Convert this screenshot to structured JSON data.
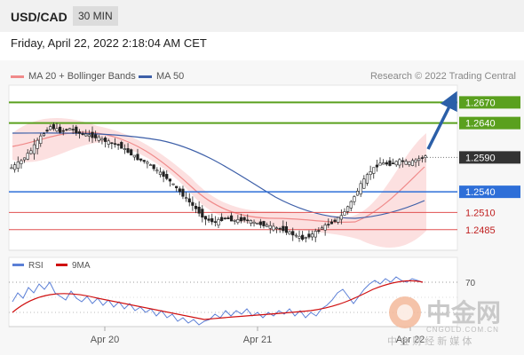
{
  "header": {
    "symbol": "USD/CAD",
    "timeframe": "30 MIN"
  },
  "datetime": "Friday, April 22, 2022 2:18:04 AM CET",
  "legend": [
    {
      "label": "MA 20 + Bollinger Bands",
      "color": "#f08a8a"
    },
    {
      "label": "MA 50",
      "color": "#3d5fa8"
    }
  ],
  "credit": "Research © 2022 Trading Central",
  "rsi_legend": [
    {
      "label": "RSI",
      "color": "#5b7fd6"
    },
    {
      "label": "9MA",
      "color": "#d01010"
    }
  ],
  "colors": {
    "resistance": "#5aa01e",
    "support": "#2e6fd8",
    "minor": "#e05050",
    "last": "#333333",
    "arrow": "#2b5fa8",
    "candle_up": "#ffffff",
    "candle_down": "#222222"
  },
  "chart_data": {
    "type": "candlestick",
    "ylim": [
      1.2455,
      1.2695
    ],
    "x_ticks": [
      "Apr 20",
      "Apr 21",
      "Apr 22"
    ],
    "levels": [
      {
        "value": 1.267,
        "label": "1.2670",
        "kind": "resistance"
      },
      {
        "value": 1.264,
        "label": "1.2640",
        "kind": "resistance"
      },
      {
        "value": 1.259,
        "label": "1.2590",
        "kind": "last"
      },
      {
        "value": 1.254,
        "label": "1.2540",
        "kind": "support"
      },
      {
        "value": 1.251,
        "label": "1.2510",
        "kind": "minor"
      },
      {
        "value": 1.2485,
        "label": "1.2485",
        "kind": "minor"
      }
    ],
    "price_path": [
      [
        0,
        1.2575
      ],
      [
        3,
        1.2585
      ],
      [
        6,
        1.26
      ],
      [
        9,
        1.262
      ],
      [
        12,
        1.2635
      ],
      [
        15,
        1.2628
      ],
      [
        18,
        1.2632
      ],
      [
        21,
        1.2625
      ],
      [
        24,
        1.2622
      ],
      [
        27,
        1.2618
      ],
      [
        30,
        1.2612
      ],
      [
        33,
        1.2608
      ],
      [
        36,
        1.2598
      ],
      [
        39,
        1.2588
      ],
      [
        42,
        1.2582
      ],
      [
        45,
        1.257
      ],
      [
        48,
        1.256
      ],
      [
        51,
        1.2545
      ],
      [
        54,
        1.253
      ],
      [
        57,
        1.2515
      ],
      [
        60,
        1.25
      ],
      [
        63,
        1.2496
      ],
      [
        66,
        1.2502
      ],
      [
        69,
        1.2498
      ],
      [
        72,
        1.25
      ],
      [
        75,
        1.2495
      ],
      [
        78,
        1.2492
      ],
      [
        81,
        1.2488
      ],
      [
        84,
        1.2485
      ],
      [
        87,
        1.2478
      ],
      [
        90,
        1.2472
      ],
      [
        93,
        1.2478
      ],
      [
        96,
        1.2488
      ],
      [
        99,
        1.2495
      ],
      [
        102,
        1.2505
      ],
      [
        105,
        1.2525
      ],
      [
        108,
        1.255
      ],
      [
        111,
        1.257
      ],
      [
        114,
        1.2582
      ],
      [
        117,
        1.258
      ],
      [
        120,
        1.2585
      ],
      [
        123,
        1.2582
      ],
      [
        126,
        1.2588
      ],
      [
        128,
        1.2592
      ]
    ],
    "rsi": {
      "label": "70",
      "value": 70,
      "ylim": [
        20,
        80
      ]
    }
  },
  "watermark": {
    "cn": "中金网",
    "sub": "中 金 财 经 新 媒 体",
    "site": "CNGOLD.COM.CN"
  }
}
